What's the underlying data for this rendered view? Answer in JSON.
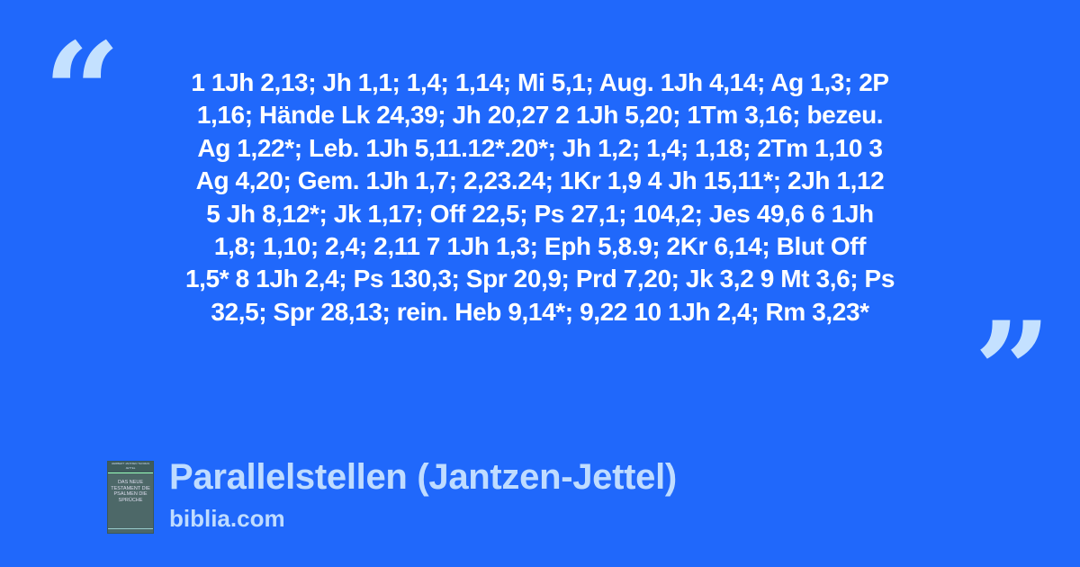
{
  "quote": {
    "open": "“",
    "close": "”",
    "lines": [
      "1 1Jh 2,13; Jh 1,1; 1,4; 1,14; Mi 5,1; Aug. 1Jh 4,14; Ag 1,3; 2P",
      "1,16; Hände Lk 24,39; Jh 20,27 2 1Jh 5,20; 1Tm 3,16; bezeu.",
      "Ag 1,22*; Leb. 1Jh 5,11.12*.20*; Jh 1,2; 1,4; 1,18; 2Tm 1,10 3",
      "Ag 4,20; Gem. 1Jh 1,7; 2,23.24; 1Kr 1,9 4 Jh 15,11*; 2Jh 1,12",
      "5 Jh 8,12*; Jk 1,17; Off 22,5; Ps 27,1; 104,2; Jes 49,6 6 1Jh",
      "1,8; 1,10; 2,4; 2,11 7 1Jh 1,3; Eph 5,8.9; 2Kr 6,14; Blut Off",
      "1,5* 8 1Jh 2,4; Ps 130,3; Spr 20,9; Prd 7,20; Jk 3,2 9 Mt 3,6; Ps",
      "32,5; Spr 28,13; rein. Heb 9,14*; 9,22 10 1Jh 2,4; Rm 3,23*"
    ]
  },
  "book_cover": {
    "authors": "HERBERT JANTZEN THOMAS JETTEL",
    "title": "DAS NEUE TESTAMENT DIE PSALMEN DIE SPRÜCHE"
  },
  "footer": {
    "title": "Parallelstellen (Jantzen-Jettel)",
    "site": "biblia.com"
  },
  "colors": {
    "background": "#2068fb",
    "accent": "#c4e1ff",
    "text": "#ffffff"
  }
}
